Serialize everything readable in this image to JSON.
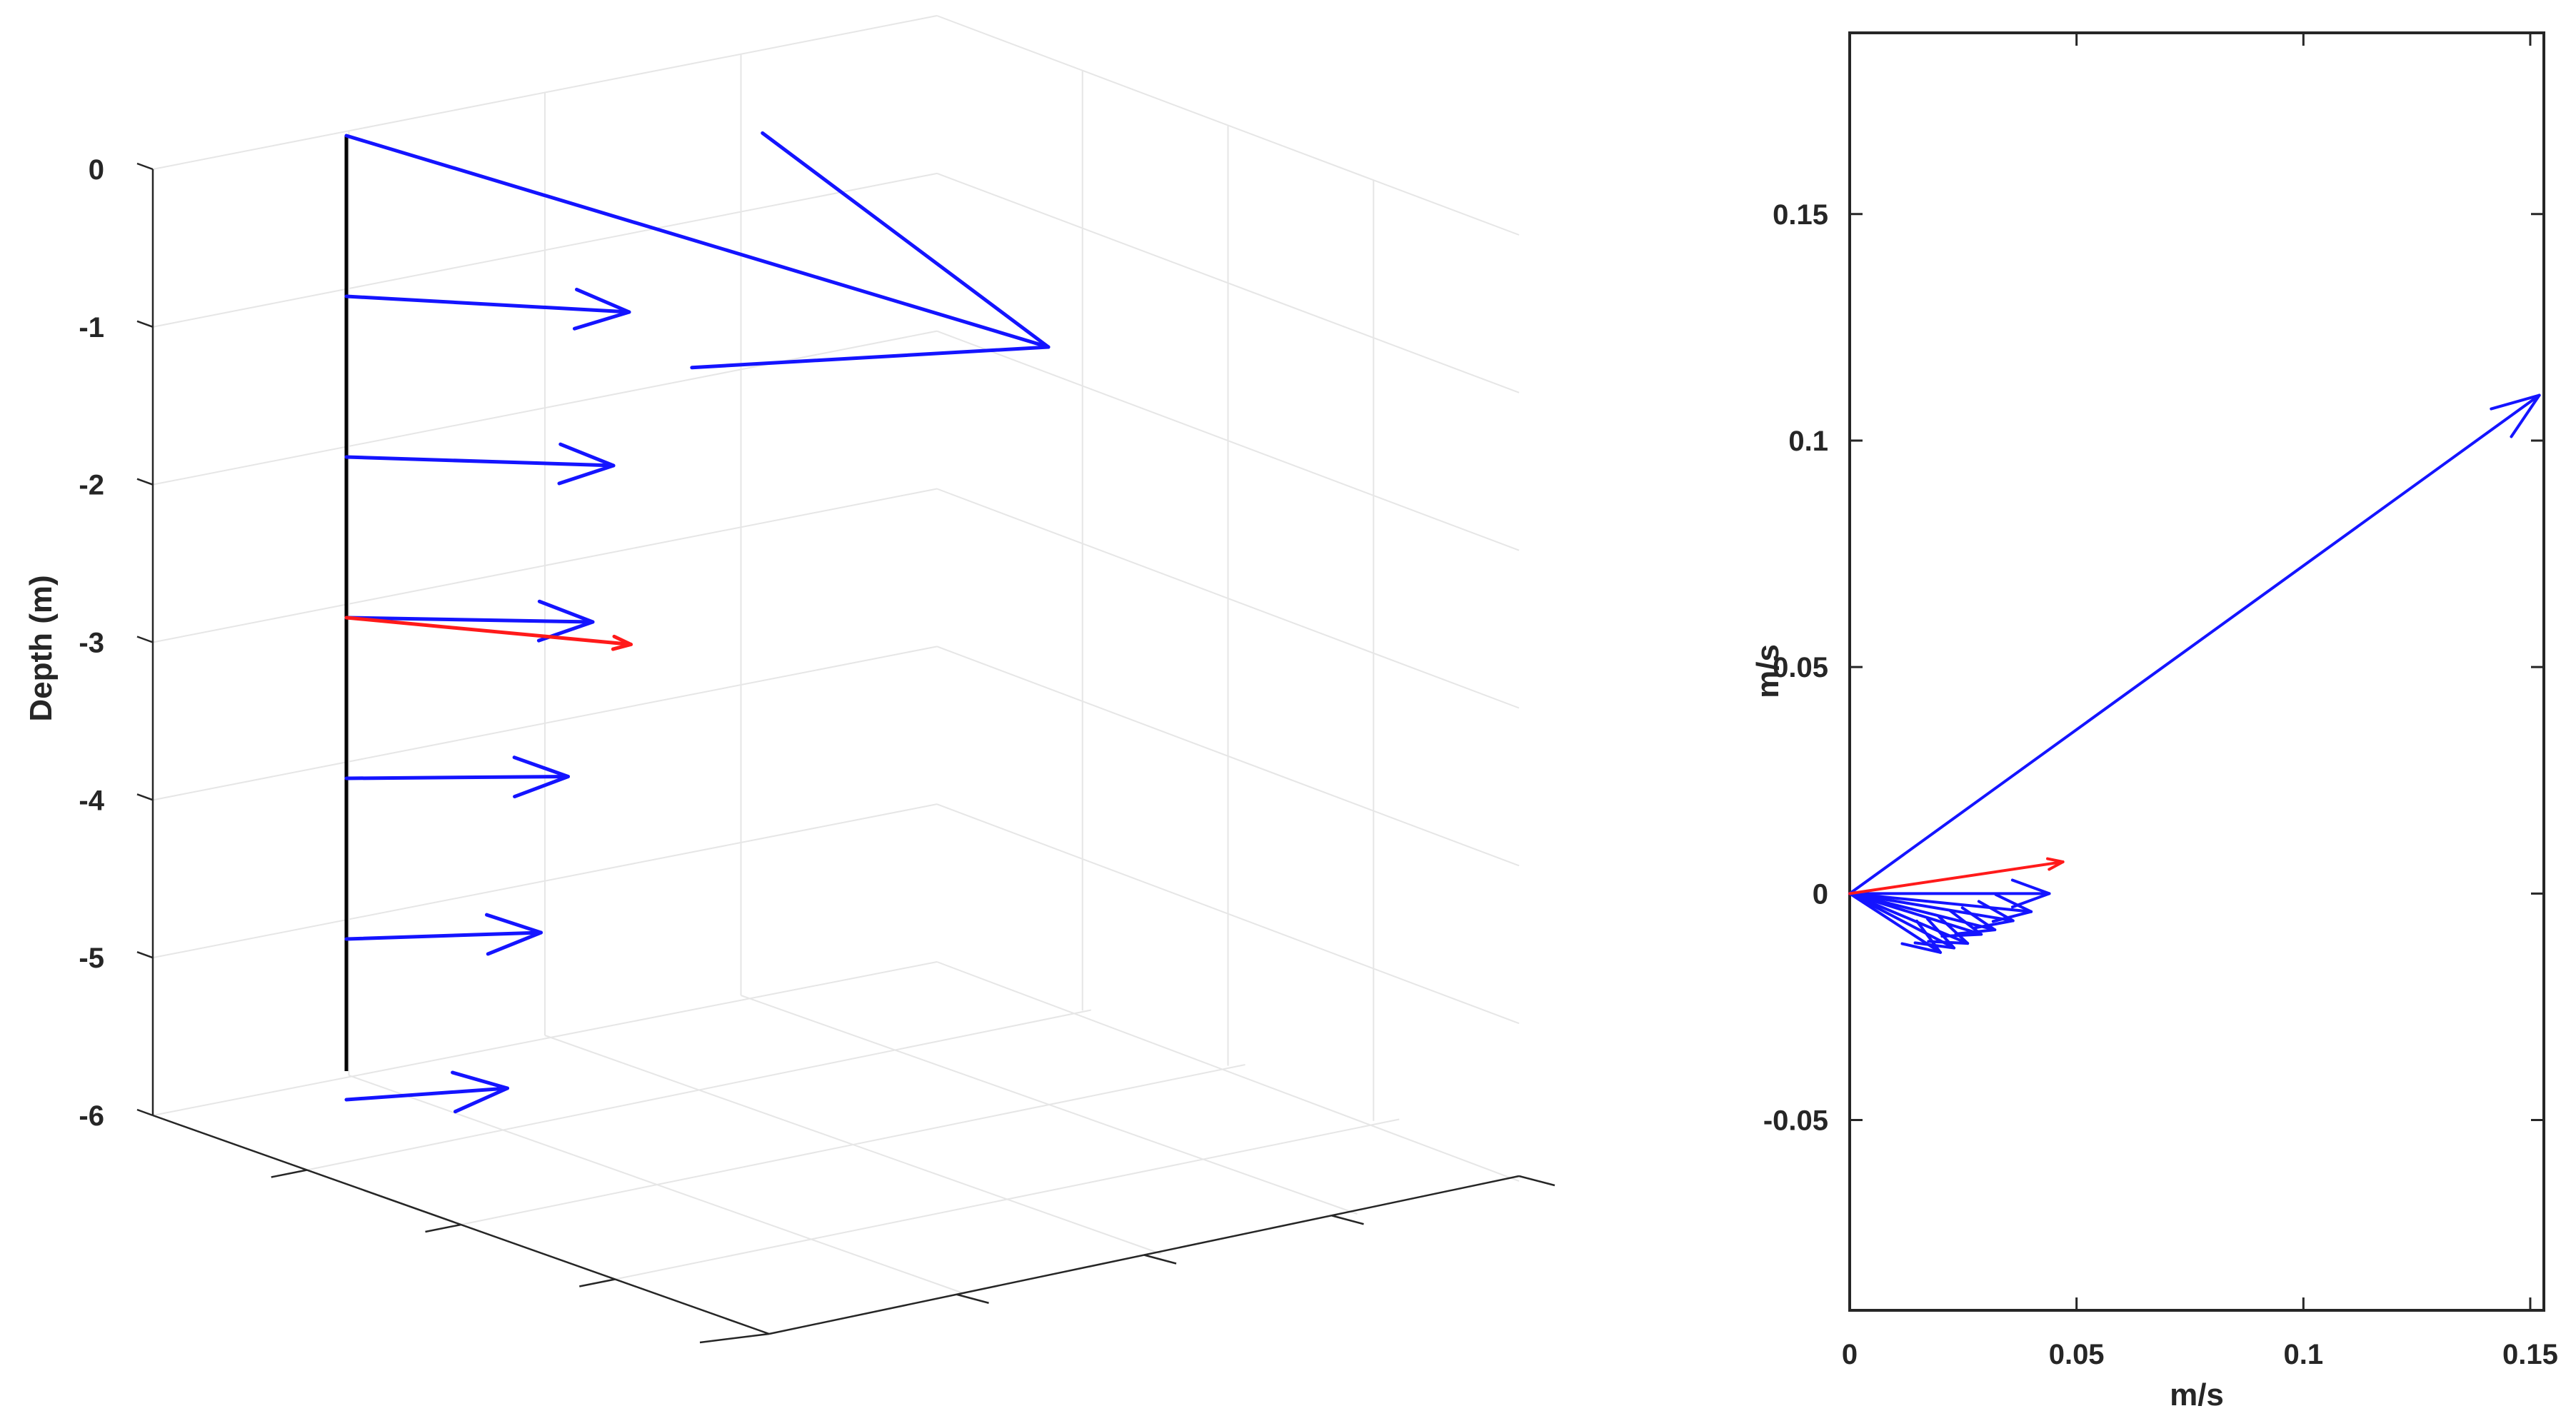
{
  "chart_data": [
    {
      "type": "quiver3d",
      "zlabel": "Depth (m)",
      "zlim": [
        -6,
        0
      ],
      "z_ticks": [
        "0",
        "-1",
        "-2",
        "-3",
        "-4",
        "-5",
        "-6"
      ],
      "grid": true,
      "colors": {
        "profile": "#1414ff",
        "mean": "#ff1a1a",
        "mast": "#000000"
      },
      "series": [
        {
          "vectors": [
            {
              "depth": 0,
              "u": 0.152,
              "v": 0.11
            },
            {
              "depth": -1,
              "u": 0.044,
              "v": 0.0
            },
            {
              "depth": -2,
              "u": 0.04,
              "v": -0.004
            },
            {
              "depth": -3,
              "u": 0.036,
              "v": -0.006
            },
            {
              "depth": -4,
              "u": 0.031,
              "v": -0.009
            },
            {
              "depth": -5,
              "u": 0.026,
              "v": -0.011
            },
            {
              "depth": -6,
              "u": 0.02,
              "v": -0.013
            }
          ]
        },
        {
          "vectors": [
            {
              "depth": -3,
              "u": 0.047,
              "v": 0.007
            }
          ]
        }
      ]
    },
    {
      "type": "quiver2d",
      "xlabel": "m/s",
      "ylabel": "m/s",
      "xlim": [
        0,
        0.153
      ],
      "ylim": [
        -0.092,
        0.19
      ],
      "x_ticks": [
        "0",
        "0.05",
        "0.1",
        "0.15"
      ],
      "y_ticks": [
        "-0.05",
        "0",
        "0.05",
        "0.1",
        "0.15"
      ],
      "x_tick_values": [
        0,
        0.05,
        0.1,
        0.15
      ],
      "y_tick_values": [
        -0.05,
        0,
        0.05,
        0.1,
        0.15
      ],
      "colors": {
        "profile": "#1414ff",
        "mean": "#ff1a1a"
      },
      "series": [
        {
          "vectors": [
            {
              "u": 0.152,
              "v": 0.11
            },
            {
              "u": 0.044,
              "v": 0.0
            },
            {
              "u": 0.04,
              "v": -0.004
            },
            {
              "u": 0.036,
              "v": -0.006
            },
            {
              "u": 0.032,
              "v": -0.008
            },
            {
              "u": 0.029,
              "v": -0.009
            },
            {
              "u": 0.026,
              "v": -0.011
            },
            {
              "u": 0.023,
              "v": -0.012
            },
            {
              "u": 0.02,
              "v": -0.013
            }
          ]
        },
        {
          "vectors": [
            {
              "u": 0.047,
              "v": 0.007
            }
          ]
        }
      ]
    }
  ]
}
